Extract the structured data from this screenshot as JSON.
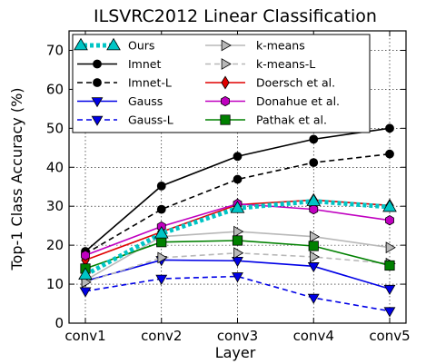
{
  "chart_data": {
    "type": "line",
    "title": "ILSVRC2012 Linear Classification",
    "xlabel": "Layer",
    "ylabel": "Top-1 Class Accuracy (%)",
    "categories": [
      "conv1",
      "conv2",
      "conv3",
      "conv4",
      "conv5"
    ],
    "ylim": [
      0,
      75
    ],
    "yticks": [
      0,
      10,
      20,
      30,
      40,
      50,
      60,
      70
    ],
    "grid": true,
    "legend_position": "top-left",
    "series": [
      {
        "name": "Ours",
        "values": [
          12.4,
          23.0,
          29.5,
          31.3,
          29.8
        ],
        "color": "#00c5c5",
        "dash": "dotted-thick",
        "marker": "triangle-up"
      },
      {
        "name": "Imnet",
        "values": [
          18.4,
          35.2,
          42.8,
          47.2,
          50.0
        ],
        "color": "#000000",
        "dash": "solid",
        "marker": "circle"
      },
      {
        "name": "Imnet-L",
        "values": [
          17.8,
          29.2,
          36.9,
          41.2,
          43.4
        ],
        "color": "#000000",
        "dash": "dashed",
        "marker": "circle"
      },
      {
        "name": "Gauss",
        "values": [
          10.8,
          16.2,
          16.0,
          14.6,
          8.8
        ],
        "color": "#0000e6",
        "dash": "solid",
        "marker": "triangle-down"
      },
      {
        "name": "Gauss-L",
        "values": [
          8.2,
          11.4,
          12.0,
          6.5,
          3.1
        ],
        "color": "#0000e6",
        "dash": "dashed",
        "marker": "triangle-down"
      },
      {
        "name": "k-means",
        "values": [
          11.0,
          22.2,
          23.5,
          22.2,
          19.4
        ],
        "color": "#b8b8b8",
        "dash": "solid",
        "marker": "triangle-right"
      },
      {
        "name": "k-means-L",
        "values": [
          10.5,
          16.8,
          18.0,
          17.0,
          15.3
        ],
        "color": "#b8b8b8",
        "dash": "dashed",
        "marker": "triangle-right"
      },
      {
        "name": "Doersch et al.",
        "values": [
          16.2,
          23.4,
          30.4,
          31.6,
          30.2
        ],
        "color": "#e00000",
        "dash": "solid",
        "marker": "diamond"
      },
      {
        "name": "Donahue et al.",
        "values": [
          17.4,
          24.8,
          30.6,
          29.2,
          26.4
        ],
        "color": "#c000c0",
        "dash": "solid",
        "marker": "hexagon"
      },
      {
        "name": "Pathak et al.",
        "values": [
          14.0,
          20.8,
          21.2,
          19.8,
          14.8
        ],
        "color": "#008000",
        "dash": "solid",
        "marker": "square"
      }
    ]
  }
}
